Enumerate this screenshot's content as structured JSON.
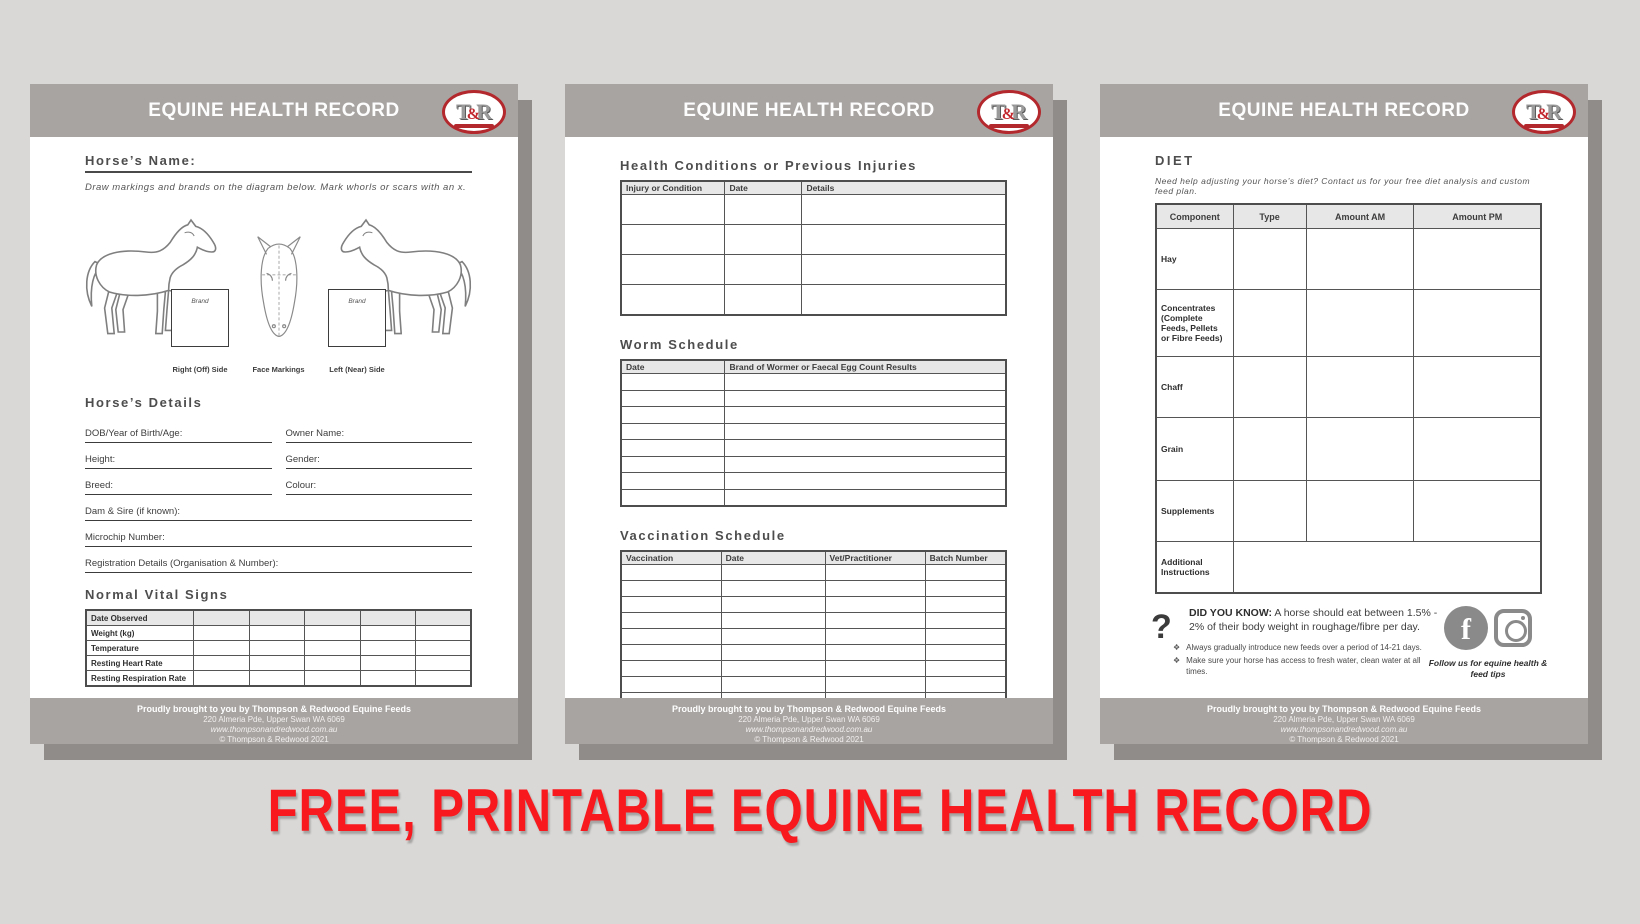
{
  "headline": {
    "text": "FREE, PRINTABLE EQUINE HEALTH RECORD",
    "color": "#f7191d"
  },
  "colors": {
    "page_bar_gray": "#a8a4a2",
    "background_gray": "#d9d8d6",
    "table_header_gray": "#e8e7e7",
    "logo_red": "#b3282c",
    "headline_red": "#f7191d"
  },
  "common": {
    "header_title": "EQUINE HEALTH RECORD",
    "logo": [
      "T",
      "&",
      "R"
    ],
    "footer_lines": [
      "Proudly brought to you by Thompson & Redwood Equine Feeds",
      "220 Almeria Pde, Upper Swan WA 6069",
      "www.thompsonandredwood.com.au",
      "© Thompson & Redwood 2021"
    ]
  },
  "page1": {
    "horse_name_label": "Horse’s Name:",
    "instructions": "Draw markings and brands on the diagram below. Mark whorls or scars with an x.",
    "diagram": {
      "brand_label": "Brand",
      "right_side_label": "Right (Off) Side",
      "face_label": "Face Markings",
      "left_side_label": "Left (Near) Side"
    },
    "details_heading": "Horse’s Details",
    "fields": {
      "dob": "DOB/Year of Birth/Age:",
      "owner": "Owner Name:",
      "height": "Height:",
      "gender": "Gender:",
      "breed": "Breed:",
      "colour": "Colour:",
      "dam_sire": "Dam & Sire (if known):",
      "microchip": "Microchip Number:",
      "registration": "Registration Details (Organisation & Number):"
    },
    "vitals_heading": "Normal Vital Signs",
    "vitals_rows": [
      "Date Observed",
      "Weight (kg)",
      "Temperature",
      "Resting Heart Rate",
      "Resting Respiration Rate"
    ]
  },
  "page2": {
    "sections": [
      {
        "heading": "Health Conditions or Previous Injuries",
        "columns": [
          "Injury or Condition",
          "Date",
          "Details"
        ],
        "row_count": 4
      },
      {
        "heading": "Worm Schedule",
        "columns": [
          "Date",
          "Brand of Wormer or Faecal Egg Count Results"
        ],
        "row_count": 8
      },
      {
        "heading": "Vaccination Schedule",
        "columns": [
          "Vaccination",
          "Date",
          "Vet/Practitioner",
          "Batch Number"
        ],
        "row_count": 9
      }
    ]
  },
  "page3": {
    "heading": "DIET",
    "intro": "Need help adjusting your horse’s diet? Contact us for your free diet analysis and custom feed plan.",
    "table": {
      "columns": [
        "Component",
        "Type",
        "Amount AM",
        "Amount PM"
      ],
      "rows": [
        "Hay",
        "Concentrates (Complete Feeds, Pellets or Fibre Feeds)",
        "Chaff",
        "Grain",
        "Supplements",
        "Additional Instructions"
      ]
    },
    "dyk": {
      "icon": "?",
      "label": "DID YOU KNOW:",
      "text": " A horse should eat between 1.5% - 2% of their body weight in roughage/fibre per day."
    },
    "tips": {
      "bullet": "❖",
      "items": [
        "Always gradually introduce new feeds over a period of 14-21 days.",
        "Make sure your horse has access to fresh water, clean water at all times."
      ]
    },
    "social_caption": "Follow us for equine health & feed tips"
  }
}
